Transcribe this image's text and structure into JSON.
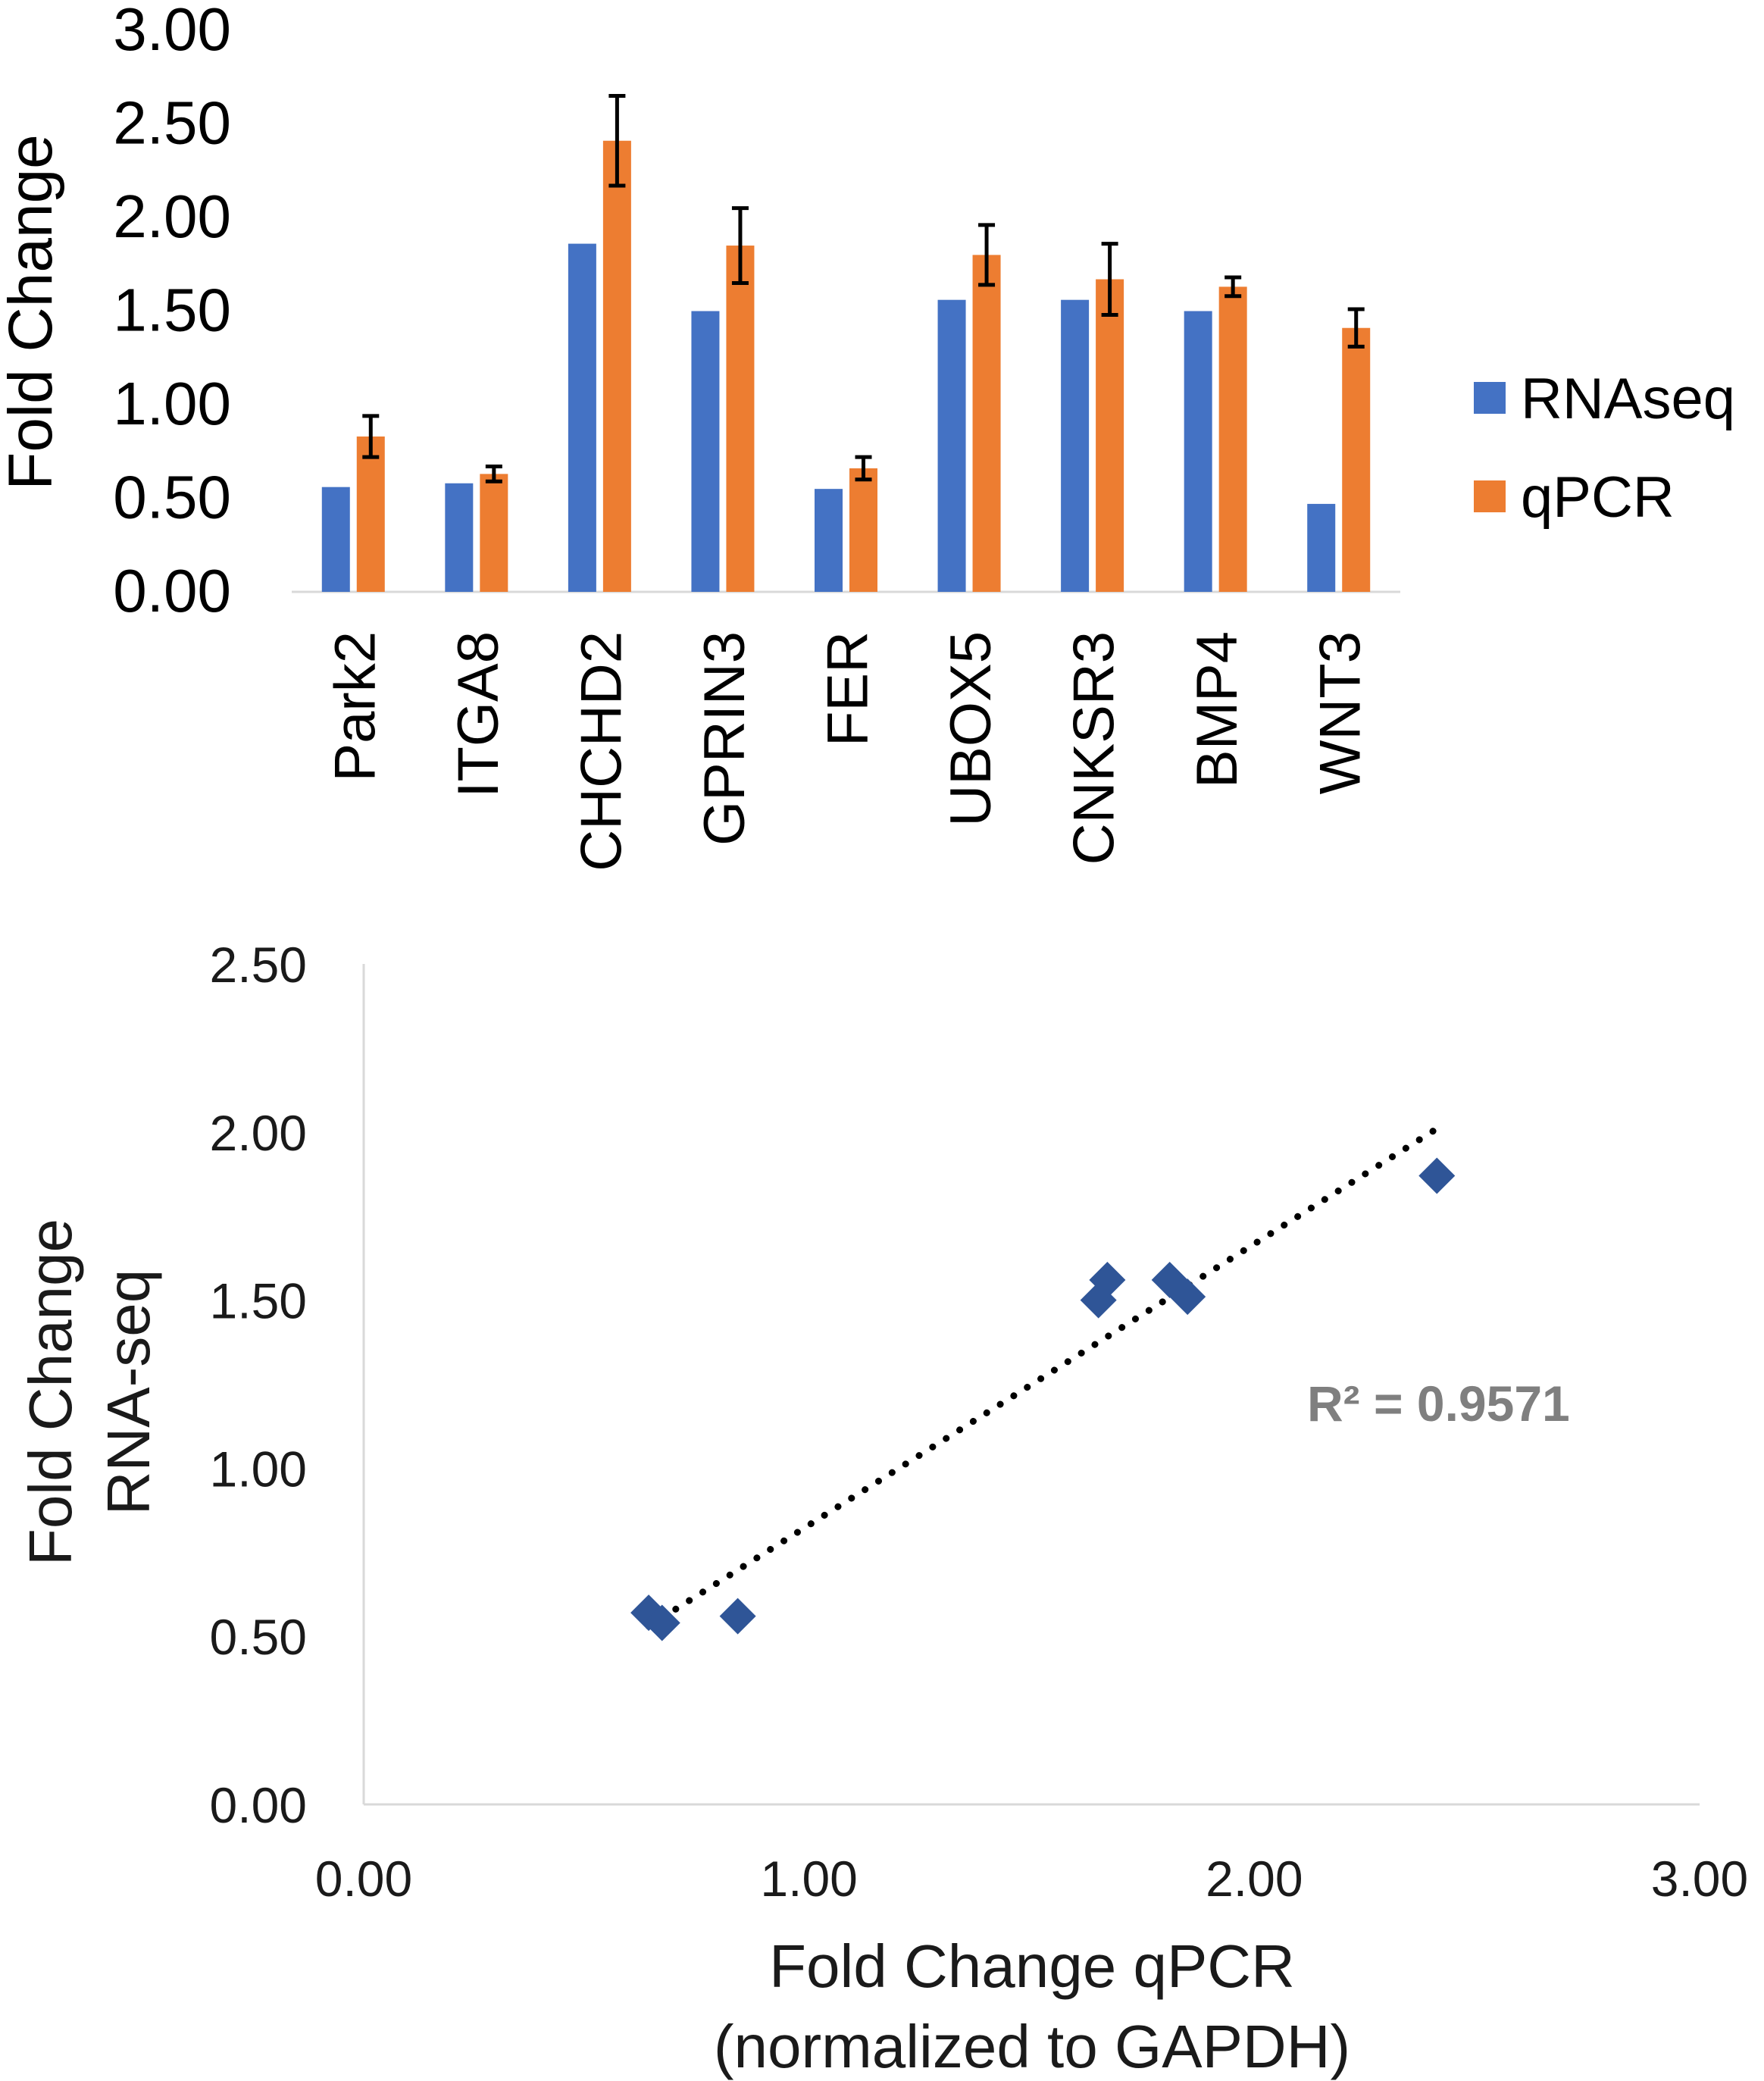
{
  "chart_data": [
    {
      "type": "bar",
      "title": "",
      "xlabel": "",
      "ylabel": "Fold Change",
      "ylim": [
        0,
        3
      ],
      "yticks": [
        "0.00",
        "0.50",
        "1.00",
        "1.50",
        "2.00",
        "2.50",
        "3.00"
      ],
      "categories": [
        "Park2",
        "ITGA8",
        "CHCHD2",
        "GPRIN3",
        "FER",
        "UBOX5",
        "CNKSR3",
        "BMP4",
        "WNT3"
      ],
      "series": [
        {
          "name": "RNAseq",
          "color": "#4472C4",
          "values": [
            0.56,
            0.58,
            1.86,
            1.5,
            0.55,
            1.56,
            1.56,
            1.5,
            0.47
          ]
        },
        {
          "name": "qPCR",
          "color": "#ED7D31",
          "values": [
            0.83,
            0.63,
            2.41,
            1.85,
            0.66,
            1.8,
            1.67,
            1.63,
            1.41
          ],
          "error": [
            0.11,
            0.04,
            0.24,
            0.2,
            0.06,
            0.16,
            0.19,
            0.05,
            0.1
          ]
        }
      ],
      "legend": "right"
    },
    {
      "type": "scatter",
      "title": "",
      "xlabel": [
        "Fold Change qPCR",
        "(normalized to GAPDH)"
      ],
      "ylabel": [
        "Fold Change",
        "RNA-seq"
      ],
      "xlim": [
        0,
        3
      ],
      "ylim": [
        0,
        2.5
      ],
      "xticks": [
        "0.00",
        "1.00",
        "2.00",
        "3.00"
      ],
      "yticks": [
        "0.00",
        "0.50",
        "1.00",
        "1.50",
        "2.00",
        "2.50"
      ],
      "marker_color": "#2F5597",
      "points": [
        {
          "x": 0.64,
          "y": 0.57
        },
        {
          "x": 0.67,
          "y": 0.54
        },
        {
          "x": 0.84,
          "y": 0.56
        },
        {
          "x": 1.65,
          "y": 1.5
        },
        {
          "x": 1.67,
          "y": 1.56
        },
        {
          "x": 1.81,
          "y": 1.56
        },
        {
          "x": 1.85,
          "y": 1.51
        },
        {
          "x": 2.41,
          "y": 1.87
        }
      ],
      "trendline": {
        "style": "dotted",
        "x": [
          0.64,
          2.41
        ],
        "y": [
          0.53,
          2.01
        ]
      },
      "annotation": "R² = 0.9571"
    }
  ]
}
